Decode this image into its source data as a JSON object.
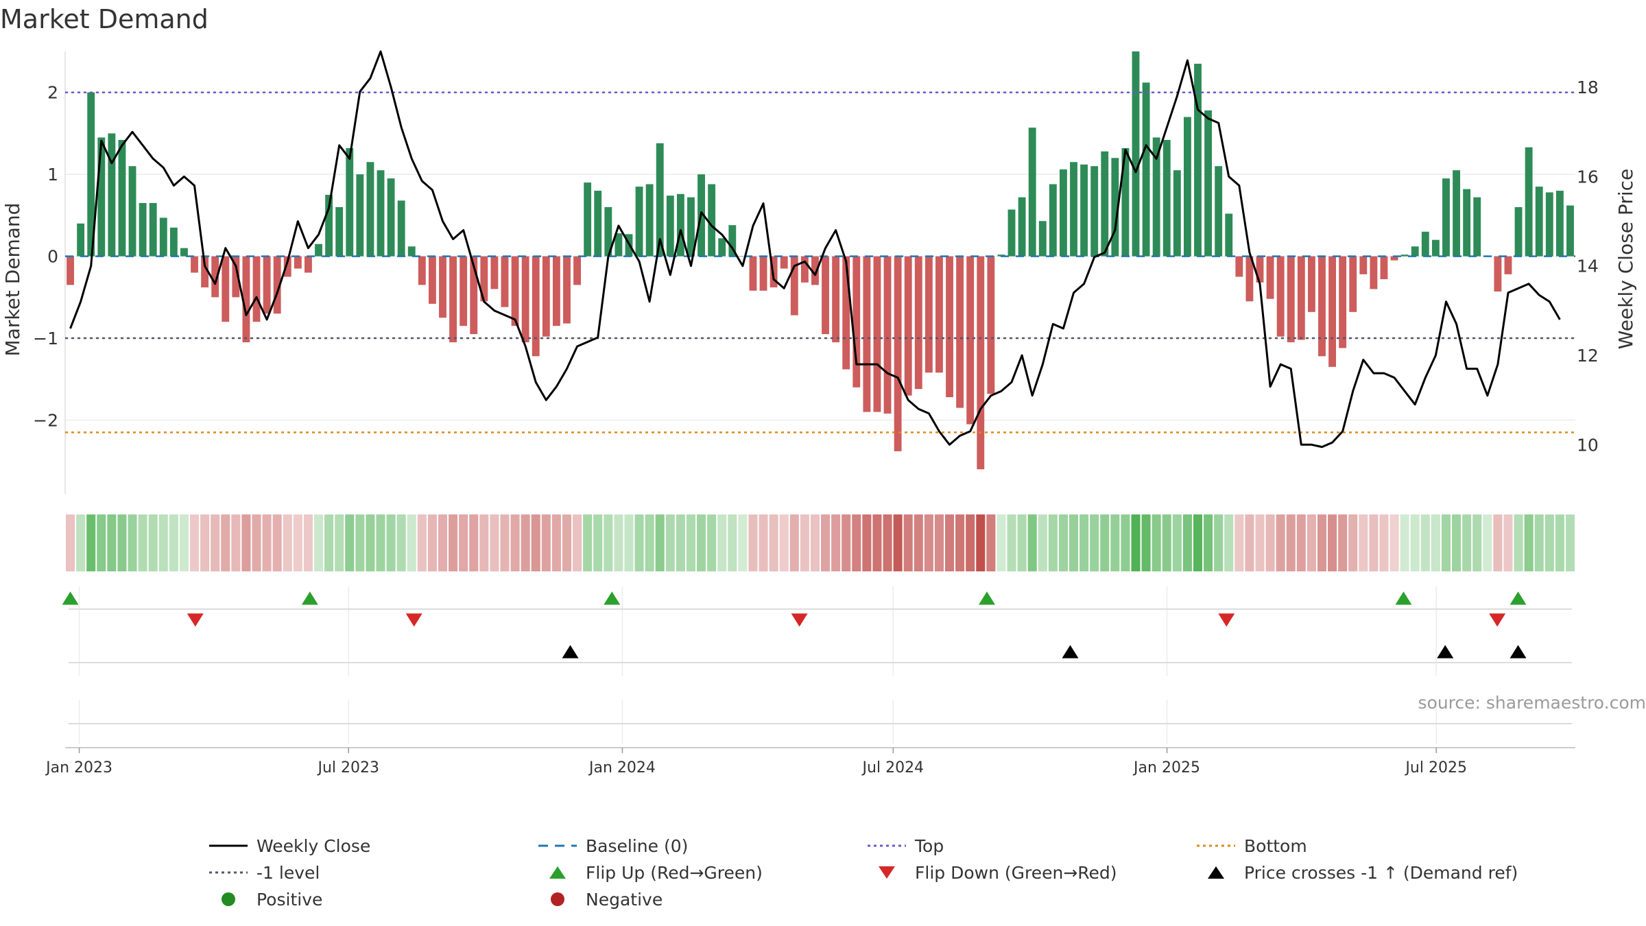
{
  "title": "Market Demand",
  "source": "source: sharemaestro.com",
  "chart_data": {
    "type": "bar",
    "title": "Market Demand",
    "ylabel": "Market Demand",
    "y2label": "Weekly Close Price",
    "ylim": [
      -2.9,
      2.5
    ],
    "y2lim": [
      8.9,
      18.8
    ],
    "yticks": [
      -2,
      -1,
      0,
      1,
      2
    ],
    "yticklabels": [
      "−2",
      "−1",
      "0",
      "1",
      "2"
    ],
    "y2ticks": [
      10,
      12,
      14,
      16,
      18
    ],
    "y2ticklabels": [
      "10",
      "12",
      "14",
      "16",
      "18"
    ],
    "x_date_range": [
      "2022-12-26",
      "2025-09-29"
    ],
    "xticks": [
      "2023-01-01",
      "2023-07-01",
      "2024-01-01",
      "2024-07-01",
      "2025-01-01",
      "2025-07-01"
    ],
    "xticklabels": [
      "Jan 2023",
      "Jul 2023",
      "Jan 2024",
      "Jul 2024",
      "Jan 2025",
      "Jul 2025"
    ],
    "reference_lines": {
      "top": 2.0,
      "level_minus_1": -1.0,
      "bottom": -2.15,
      "baseline": 0
    },
    "series": [
      {
        "name": "Market Demand",
        "style": "bar",
        "values": [
          -0.35,
          0.4,
          2.0,
          1.45,
          1.5,
          1.42,
          1.1,
          0.65,
          0.65,
          0.47,
          0.35,
          0.1,
          -0.2,
          -0.38,
          -0.5,
          -0.8,
          -0.5,
          -1.05,
          -0.8,
          -0.7,
          -0.7,
          -0.25,
          -0.15,
          -0.2,
          0.15,
          0.75,
          0.6,
          1.32,
          1.0,
          1.15,
          1.05,
          0.95,
          0.68,
          0.12,
          -0.35,
          -0.58,
          -0.75,
          -1.05,
          -0.85,
          -0.95,
          -0.55,
          -0.4,
          -0.62,
          -0.85,
          -1.05,
          -1.22,
          -0.98,
          -0.85,
          -0.82,
          -0.35,
          0.9,
          0.8,
          0.6,
          0.28,
          0.27,
          0.85,
          0.88,
          1.38,
          0.74,
          0.76,
          0.72,
          1.0,
          0.88,
          0.22,
          0.38,
          0.0,
          -0.42,
          -0.42,
          -0.38,
          -0.15,
          -0.72,
          -0.32,
          -0.35,
          -0.95,
          -1.05,
          -1.38,
          -1.6,
          -1.9,
          -1.9,
          -1.92,
          -2.38,
          -1.7,
          -1.62,
          -1.42,
          -1.42,
          -1.72,
          -1.85,
          -2.05,
          -2.6,
          -1.68,
          0.02,
          0.57,
          0.72,
          1.57,
          0.43,
          0.88,
          1.06,
          1.15,
          1.12,
          1.1,
          1.28,
          1.2,
          1.32,
          2.5,
          2.12,
          1.45,
          1.42,
          1.05,
          1.7,
          2.35,
          1.78,
          1.1,
          0.52,
          -0.25,
          -0.55,
          -0.32,
          -0.52,
          -0.98,
          -1.05,
          -1.02,
          -0.68,
          -1.22,
          -1.35,
          -1.12,
          -0.68,
          -0.22,
          -0.4,
          -0.28,
          -0.05,
          0.02,
          0.12,
          0.3,
          0.2,
          0.95,
          1.05,
          0.82,
          0.72,
          0.0,
          -0.43,
          -0.22,
          0.6,
          1.33,
          0.85,
          0.78,
          0.8,
          0.62
        ]
      },
      {
        "name": "Weekly Close",
        "style": "line",
        "axis": "right",
        "values": [
          12.6,
          13.2,
          14.0,
          16.8,
          16.3,
          16.7,
          17.0,
          16.7,
          16.4,
          16.2,
          15.8,
          16.0,
          15.8,
          14.0,
          13.6,
          14.4,
          14.0,
          12.9,
          13.3,
          12.8,
          13.4,
          14.1,
          15.0,
          14.4,
          14.7,
          15.3,
          16.7,
          16.4,
          17.9,
          18.2,
          18.8,
          18.0,
          17.1,
          16.4,
          15.9,
          15.7,
          15.0,
          14.6,
          14.8,
          14.0,
          13.2,
          13.0,
          12.9,
          12.8,
          12.2,
          11.4,
          11.0,
          11.3,
          11.7,
          12.2,
          12.3,
          12.4,
          14.2,
          14.9,
          14.5,
          14.1,
          13.2,
          14.6,
          13.8,
          14.8,
          14.0,
          15.2,
          14.9,
          14.7,
          14.4,
          14.0,
          14.9,
          15.4,
          13.7,
          13.5,
          14.0,
          14.1,
          13.8,
          14.4,
          14.8,
          14.1,
          11.8,
          11.8,
          11.8,
          11.6,
          11.5,
          11.0,
          10.8,
          10.7,
          10.3,
          10.0,
          10.2,
          10.3,
          10.8,
          11.1,
          11.2,
          11.4,
          12.0,
          11.1,
          11.8,
          12.7,
          12.6,
          13.4,
          13.6,
          14.2,
          14.3,
          14.8,
          16.6,
          16.1,
          16.7,
          16.4,
          17.1,
          17.8,
          18.6,
          17.5,
          17.3,
          17.2,
          16.0,
          15.8,
          14.3,
          13.6,
          11.3,
          11.8,
          11.7,
          10.0,
          10.0,
          9.95,
          10.05,
          10.3,
          11.2,
          11.9,
          11.6,
          11.6,
          11.5,
          11.2,
          10.9,
          11.5,
          12.0,
          13.2,
          12.7,
          11.7,
          11.7,
          11.1,
          11.8,
          13.4,
          13.5,
          13.6,
          13.35,
          13.2,
          12.8
        ]
      }
    ],
    "markers": {
      "flip_up": [
        "2022-12-26",
        "2023-06-05",
        "2023-12-25",
        "2024-09-02",
        "2025-06-09",
        "2025-08-25"
      ],
      "flip_down": [
        "2023-03-20",
        "2023-08-14",
        "2024-04-29",
        "2025-02-10",
        "2025-08-11"
      ],
      "price_crosses_minus1": [
        "2023-11-27",
        "2024-10-28",
        "2025-07-07",
        "2025-08-25"
      ]
    }
  },
  "legend": [
    {
      "label": "Weekly Close",
      "symbol": "line-solid",
      "color": "#000000"
    },
    {
      "label": "Baseline (0)",
      "symbol": "line-dash",
      "color": "#1f77b4"
    },
    {
      "label": "Top",
      "symbol": "line-dot",
      "color": "#6a5acd"
    },
    {
      "label": "Bottom",
      "symbol": "line-dot",
      "color": "#dd8a1a"
    },
    {
      "label": "-1 level",
      "symbol": "line-dot",
      "color": "#555566"
    },
    {
      "label": "Flip Up (Red→Green)",
      "symbol": "triangle-up",
      "color": "#2ca02c"
    },
    {
      "label": "Flip Down (Green→Red)",
      "symbol": "triangle-down",
      "color": "#d62728"
    },
    {
      "label": "Price crosses -1 ↑ (Demand ref)",
      "symbol": "triangle-up",
      "color": "#000000"
    },
    {
      "label": "Positive",
      "symbol": "dot",
      "color": "#228b22"
    },
    {
      "label": "Negative",
      "symbol": "dot",
      "color": "#b22222"
    }
  ],
  "colors": {
    "positive_bar": "#2e8b57",
    "negative_bar": "#cd5c5c",
    "price_line": "#000000",
    "heat_positive": "#4caf50",
    "heat_negative": "#c0504d"
  }
}
